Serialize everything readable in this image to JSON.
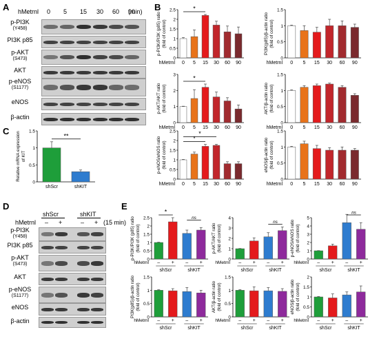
{
  "panels": {
    "a": "A",
    "b": "B",
    "c": "C",
    "d": "D",
    "e": "E"
  },
  "panel_a": {
    "treatment_label": "hMetrnl",
    "doses": [
      "0",
      "5",
      "15",
      "30",
      "60",
      "90"
    ],
    "unit": "(min)",
    "rows": [
      {
        "name": "p-PI3K",
        "sub": "(Y458)"
      },
      {
        "name": "PI3K p85",
        "sub": ""
      },
      {
        "name": "p-AKT",
        "sub": "(S473)"
      },
      {
        "name": "AKT",
        "sub": ""
      },
      {
        "name": "p-eNOS",
        "sub": "(S1177)"
      },
      {
        "name": "eNOS",
        "sub": ""
      },
      {
        "name": "β-actin",
        "sub": ""
      }
    ]
  },
  "panel_d": {
    "treatment_label": "hMetrnl",
    "group_labels": [
      "shScr",
      "shKIT"
    ],
    "signs": [
      "–",
      "+",
      "–",
      "+"
    ],
    "unit": "(15 min)",
    "rows": [
      {
        "name": "p-PI3K",
        "sub": "(Y458)"
      },
      {
        "name": "PI3K p85",
        "sub": ""
      },
      {
        "name": "p-AKT",
        "sub": "(S473)"
      },
      {
        "name": "AKT",
        "sub": ""
      },
      {
        "name": "p-eNOS",
        "sub": "(S1177)"
      },
      {
        "name": "eNOS",
        "sub": ""
      },
      {
        "name": "β-actin",
        "sub": ""
      }
    ]
  },
  "chart_data": [
    {
      "id": "b1",
      "type": "bar",
      "ylabel": "p-PI3K/PI3K (p85) ratio\n(fold of control)",
      "xlabel": "hMetrnl",
      "categories": [
        "0",
        "5",
        "15",
        "30",
        "60",
        "90"
      ],
      "values": [
        1.0,
        1.1,
        2.2,
        1.7,
        1.35,
        1.25
      ],
      "errors": [
        0.05,
        0.35,
        0.05,
        0.2,
        0.3,
        0.35
      ],
      "ylim": [
        0,
        2.5
      ],
      "yticks": [
        0.0,
        0.5,
        1.0,
        1.5,
        2.0,
        2.5
      ],
      "colors": [
        "#ffffff",
        "#e8731a",
        "#e41a1c",
        "#c2262b",
        "#a12b2f",
        "#7a2a2e"
      ],
      "sig": [
        {
          "from": 0,
          "to": 2,
          "label": "*"
        }
      ]
    },
    {
      "id": "b2",
      "type": "bar",
      "ylabel": "PI3K(p85)/β-actin ratio\n(fold of control)",
      "xlabel": "hMetrnl",
      "categories": [
        "0",
        "5",
        "15",
        "30",
        "60",
        "90"
      ],
      "values": [
        1.0,
        0.85,
        0.8,
        1.0,
        1.0,
        0.95
      ],
      "errors": [
        0.02,
        0.15,
        0.15,
        0.2,
        0.15,
        0.1
      ],
      "ylim": [
        0,
        1.5
      ],
      "yticks": [
        0.0,
        0.5,
        1.0,
        1.5
      ],
      "colors": [
        "#ffffff",
        "#e8731a",
        "#e41a1c",
        "#c2262b",
        "#a12b2f",
        "#7a2a2e"
      ],
      "sig": []
    },
    {
      "id": "b3",
      "type": "bar",
      "ylabel": "p-AKT/AKT ratio\n(fold of control)",
      "xlabel": "hMetrnl",
      "categories": [
        "0",
        "5",
        "15",
        "30",
        "60",
        "90"
      ],
      "values": [
        1.0,
        1.5,
        2.2,
        1.6,
        1.35,
        0.85
      ],
      "errors": [
        0.02,
        0.55,
        0.2,
        0.3,
        0.2,
        0.25
      ],
      "ylim": [
        0,
        3
      ],
      "yticks": [
        0,
        1,
        2,
        3
      ],
      "colors": [
        "#ffffff",
        "#e8731a",
        "#e41a1c",
        "#c2262b",
        "#a12b2f",
        "#7a2a2e"
      ],
      "sig": [
        {
          "from": 0,
          "to": 2,
          "label": "*"
        }
      ]
    },
    {
      "id": "b4",
      "type": "bar",
      "ylabel": "AKT/β-actin ratio\n(fold of control)",
      "xlabel": "hMetrnl",
      "categories": [
        "0",
        "5",
        "15",
        "30",
        "60",
        "90"
      ],
      "values": [
        1.0,
        1.1,
        1.15,
        1.2,
        1.1,
        0.85
      ],
      "errors": [
        0.02,
        0.05,
        0.05,
        0.03,
        0.05,
        0.05
      ],
      "ylim": [
        0,
        1.5
      ],
      "yticks": [
        0.0,
        0.5,
        1.0,
        1.5
      ],
      "colors": [
        "#ffffff",
        "#e8731a",
        "#e41a1c",
        "#c2262b",
        "#a12b2f",
        "#7a2a2e"
      ],
      "sig": []
    },
    {
      "id": "b5",
      "type": "bar",
      "ylabel": "p-eNOS/eNOS ratio\n(fold of control)",
      "xlabel": "hMetrnl",
      "categories": [
        "0",
        "5",
        "15",
        "30",
        "60",
        "90"
      ],
      "values": [
        1.0,
        1.3,
        1.7,
        1.75,
        0.8,
        0.8
      ],
      "errors": [
        0.02,
        0.1,
        0.1,
        0.05,
        0.1,
        0.1
      ],
      "ylim": [
        0,
        2.5
      ],
      "yticks": [
        0.0,
        0.5,
        1.0,
        1.5,
        2.0,
        2.5
      ],
      "colors": [
        "#ffffff",
        "#e8731a",
        "#e41a1c",
        "#c2262b",
        "#a12b2f",
        "#7a2a2e"
      ],
      "sig": [
        {
          "from": 0,
          "to": 2,
          "label": "*"
        },
        {
          "from": 0,
          "to": 3,
          "label": "*"
        }
      ]
    },
    {
      "id": "b6",
      "type": "bar",
      "ylabel": "eNOS/β-actin ratio\n(fold of control)",
      "xlabel": "hMetrnl",
      "categories": [
        "0",
        "5",
        "15",
        "30",
        "60",
        "90"
      ],
      "values": [
        1.0,
        1.1,
        0.95,
        0.9,
        0.9,
        0.9
      ],
      "errors": [
        0.02,
        0.08,
        0.1,
        0.08,
        0.1,
        0.05
      ],
      "ylim": [
        0,
        1.5
      ],
      "yticks": [
        0.0,
        0.5,
        1.0,
        1.5
      ],
      "colors": [
        "#ffffff",
        "#e8731a",
        "#e41a1c",
        "#c2262b",
        "#a12b2f",
        "#7a2a2e"
      ],
      "sig": []
    },
    {
      "id": "c",
      "type": "bar",
      "ylabel": "Relative mRNA expression\nof KIT",
      "xlabel": "",
      "categories": [
        "shScr",
        "shKIT"
      ],
      "values": [
        1.0,
        0.3
      ],
      "errors": [
        0.18,
        0.05
      ],
      "ylim": [
        0,
        1.5
      ],
      "yticks": [
        0.0,
        0.5,
        1.0,
        1.5
      ],
      "colors": [
        "#1e9e3a",
        "#2e7ccf"
      ],
      "sig": [
        {
          "from": 0,
          "to": 1,
          "label": "**"
        }
      ]
    },
    {
      "id": "e1",
      "type": "bar",
      "ylabel": "p-PI3K/PI3K (p85) ratio\n(fold of control)",
      "xlabel": "hMetrnl",
      "signs": [
        "–",
        "+",
        "–",
        "+"
      ],
      "groups": [
        "shScr",
        "shKIT"
      ],
      "values": [
        1.0,
        2.25,
        1.55,
        1.75
      ],
      "errors": [
        0.02,
        0.25,
        0.2,
        0.15
      ],
      "ylim": [
        0,
        2.5
      ],
      "yticks": [
        0.0,
        0.5,
        1.0,
        1.5,
        2.0,
        2.5
      ],
      "colors": [
        "#1e9e3a",
        "#e41a1c",
        "#2e7ccf",
        "#8e2a9c"
      ],
      "sig": [
        {
          "from": 0,
          "to": 1,
          "label": "*"
        },
        {
          "from": 2,
          "to": 3,
          "label": "ns"
        }
      ]
    },
    {
      "id": "e2",
      "type": "bar",
      "ylabel": "p-AKT/AKT ratio\n(fold of control)",
      "xlabel": "hMetrnl",
      "signs": [
        "–",
        "+",
        "–",
        "+"
      ],
      "groups": [
        "shScr",
        "shKIT"
      ],
      "values": [
        1.0,
        1.75,
        2.15,
        2.75
      ],
      "errors": [
        0.02,
        0.3,
        0.4,
        0.35
      ],
      "ylim": [
        0,
        4
      ],
      "yticks": [
        0,
        1,
        2,
        3,
        4
      ],
      "colors": [
        "#1e9e3a",
        "#e41a1c",
        "#2e7ccf",
        "#8e2a9c"
      ],
      "sig": [
        {
          "from": 2,
          "to": 3,
          "label": "ns"
        }
      ]
    },
    {
      "id": "e3",
      "type": "bar",
      "ylabel": "p-eNOS/eNOS ratio\n(fold of control)",
      "xlabel": "hMetrnl",
      "signs": [
        "–",
        "+",
        "–",
        "+"
      ],
      "groups": [
        "shScr",
        "shKIT"
      ],
      "values": [
        1.0,
        1.6,
        4.4,
        3.6
      ],
      "errors": [
        0.02,
        0.2,
        1.0,
        0.8
      ],
      "ylim": [
        0,
        5
      ],
      "yticks": [
        0,
        1,
        2,
        3,
        4,
        5
      ],
      "colors": [
        "#1e9e3a",
        "#e41a1c",
        "#2e7ccf",
        "#8e2a9c"
      ],
      "sig": [
        {
          "from": 2,
          "to": 3,
          "label": "ns"
        }
      ]
    },
    {
      "id": "e4",
      "type": "bar",
      "ylabel": "PI3K(p85)/β-actin ratio\n(fold of control)",
      "xlabel": "hMetrnl",
      "signs": [
        "–",
        "+",
        "–",
        "+"
      ],
      "groups": [
        "shScr",
        "shKIT"
      ],
      "values": [
        1.0,
        0.98,
        0.95,
        0.9
      ],
      "errors": [
        0.02,
        0.08,
        0.15,
        0.1
      ],
      "ylim": [
        0,
        1.5
      ],
      "yticks": [
        0.0,
        0.5,
        1.0,
        1.5
      ],
      "colors": [
        "#1e9e3a",
        "#e41a1c",
        "#2e7ccf",
        "#8e2a9c"
      ],
      "sig": []
    },
    {
      "id": "e5",
      "type": "bar",
      "ylabel": "AKT/β-actin ratio\n(fold of control)",
      "xlabel": "hMetrnl",
      "signs": [
        "–",
        "+",
        "–",
        "+"
      ],
      "groups": [
        "shScr",
        "shKIT"
      ],
      "values": [
        1.0,
        0.98,
        0.98,
        0.96
      ],
      "errors": [
        0.02,
        0.15,
        0.12,
        0.1
      ],
      "ylim": [
        0,
        1.5
      ],
      "yticks": [
        0.0,
        0.5,
        1.0,
        1.5
      ],
      "colors": [
        "#1e9e3a",
        "#e41a1c",
        "#2e7ccf",
        "#8e2a9c"
      ],
      "sig": []
    },
    {
      "id": "e6",
      "type": "bar",
      "ylabel": "eNOS/β-actin ratio\n(fold of control)",
      "xlabel": "hMetrnl",
      "signs": [
        "–",
        "+",
        "–",
        "+"
      ],
      "groups": [
        "shScr",
        "shKIT"
      ],
      "values": [
        1.0,
        0.95,
        1.1,
        1.25
      ],
      "errors": [
        0.02,
        0.2,
        0.15,
        0.3
      ],
      "ylim": [
        0,
        2
      ],
      "yticks": [
        0.0,
        0.5,
        1.0,
        1.5,
        2.0
      ],
      "colors": [
        "#1e9e3a",
        "#e41a1c",
        "#2e7ccf",
        "#8e2a9c"
      ],
      "sig": []
    }
  ]
}
